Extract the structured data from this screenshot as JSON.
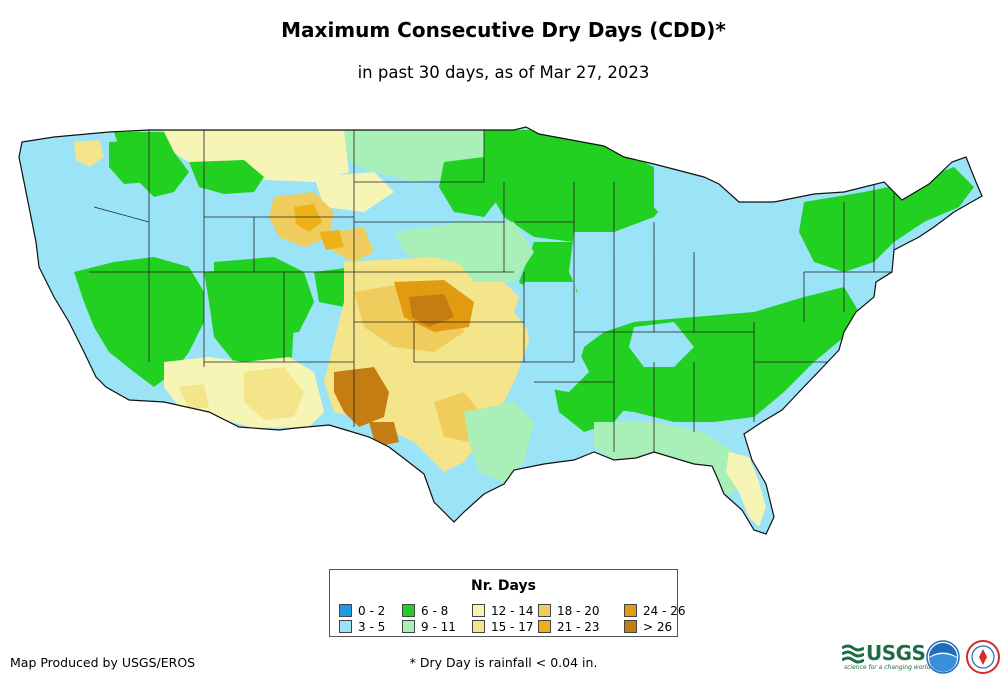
{
  "title": "Maximum Consecutive Dry Days (CDD)*",
  "subtitle": "in past 30 days, as of Mar 27, 2023",
  "legend": {
    "title": "Nr. Days",
    "items": [
      {
        "label": "0 - 2",
        "color": "#1e9be6"
      },
      {
        "label": "3 - 5",
        "color": "#9be3f7"
      },
      {
        "label": "6 - 8",
        "color": "#22d022"
      },
      {
        "label": "9 - 11",
        "color": "#a8f0b8"
      },
      {
        "label": "12 - 14",
        "color": "#f7f5b5"
      },
      {
        "label": "15 - 17",
        "color": "#f4e58a"
      },
      {
        "label": "18 - 20",
        "color": "#f0cc5c"
      },
      {
        "label": "21 - 23",
        "color": "#eeb217"
      },
      {
        "label": "24 - 26",
        "color": "#e29a10"
      },
      {
        "label": "> 26",
        "color": "#c47d12"
      }
    ]
  },
  "footer": {
    "credit": "Map Produced by USGS/EROS",
    "footnote": "* Dry Day is rainfall < 0.04 in."
  },
  "logos": {
    "usgs": "USGS",
    "usgs_tagline": "science for a changing world",
    "noaa_color": "#1f6db8",
    "nws_color": "#d82a2a"
  }
}
